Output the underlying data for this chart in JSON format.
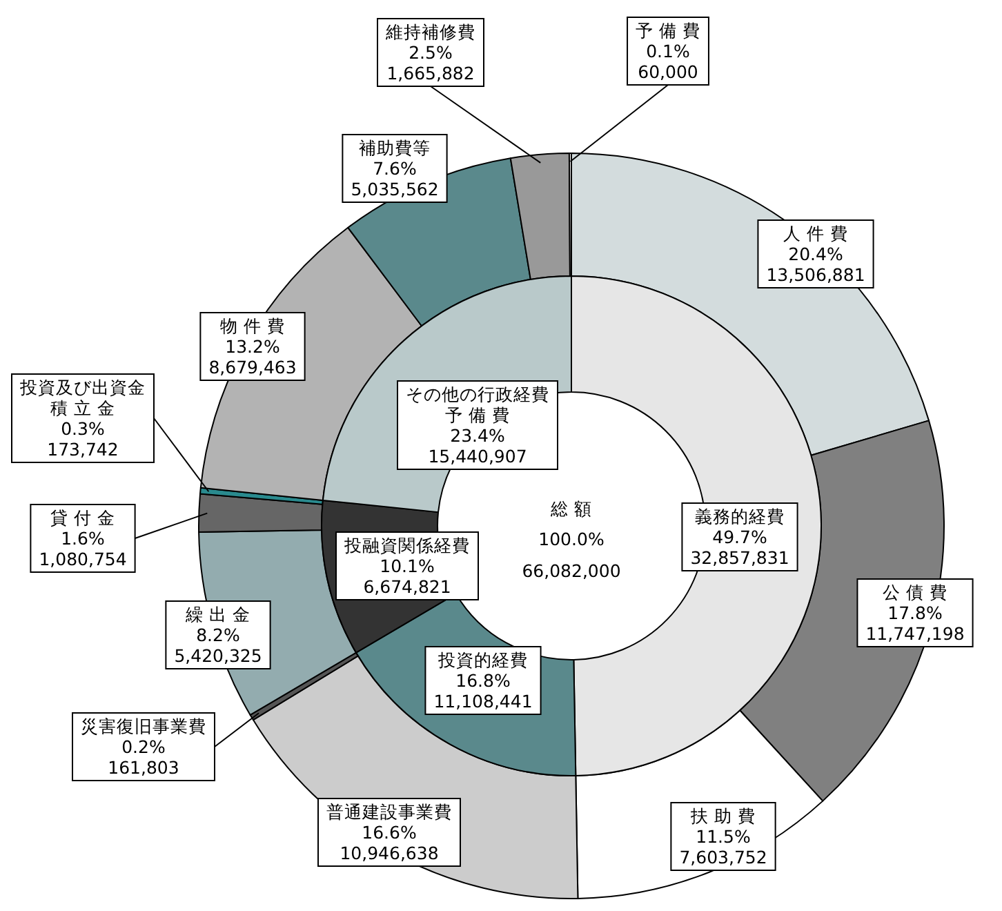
{
  "chart_data": [
    {
      "type": "donut",
      "categories": [
        "人 件 費",
        "公 債 費",
        "扶 助 費",
        "普通建設事業費",
        "災害復旧事業費",
        "繰 出 金",
        "貸 付 金",
        "投資及び出資金積 立 金",
        "物 件 費",
        "補助費等",
        "維持補修費",
        "予 備 費"
      ],
      "values": [
        13506881,
        11747198,
        7603752,
        10946638,
        161803,
        5420325,
        1080754,
        173742,
        8679463,
        5035562,
        1665882,
        60000
      ],
      "value_labels": [
        "20.4%\n13,506,881",
        "17.8%\n11,747,198",
        "11.5%\n7,603,752",
        "16.6%\n10,946,638",
        "0.2%\n161,803",
        "8.2%\n5,420,325",
        "1.6%\n1,080,754",
        "0.3%\n173,742",
        "13.2%\n8,679,463",
        "7.6%\n5,035,562",
        "2.5%\n1,665,882",
        "0.1%\n60,000"
      ],
      "colors": [
        "#d3dcdd",
        "#808080",
        "#ffffff",
        "#cccccc",
        "#555555",
        "#93acaf",
        "#666666",
        "#2a8a8e",
        "#b3b3b3",
        "#5a898c",
        "#999999",
        "#ffffff"
      ]
    },
    {
      "type": "donut",
      "categories": [
        "義務的経費",
        "投資的経費",
        "投融資関係経費",
        "その他の行政経費予 備 費"
      ],
      "values": [
        32857831,
        11108441,
        6674821,
        15440907
      ],
      "value_labels": [
        "49.7%\n32,857,831",
        "16.8%\n11,108,441",
        "10.1%\n6,674,821",
        "23.4%\n15,440,907"
      ],
      "colors": [
        "#e6e6e6",
        "#5a898c",
        "#333333",
        "#b9c9ca"
      ],
      "annotations": [
        "総 額",
        "100.0%",
        "66,082,000"
      ]
    }
  ]
}
